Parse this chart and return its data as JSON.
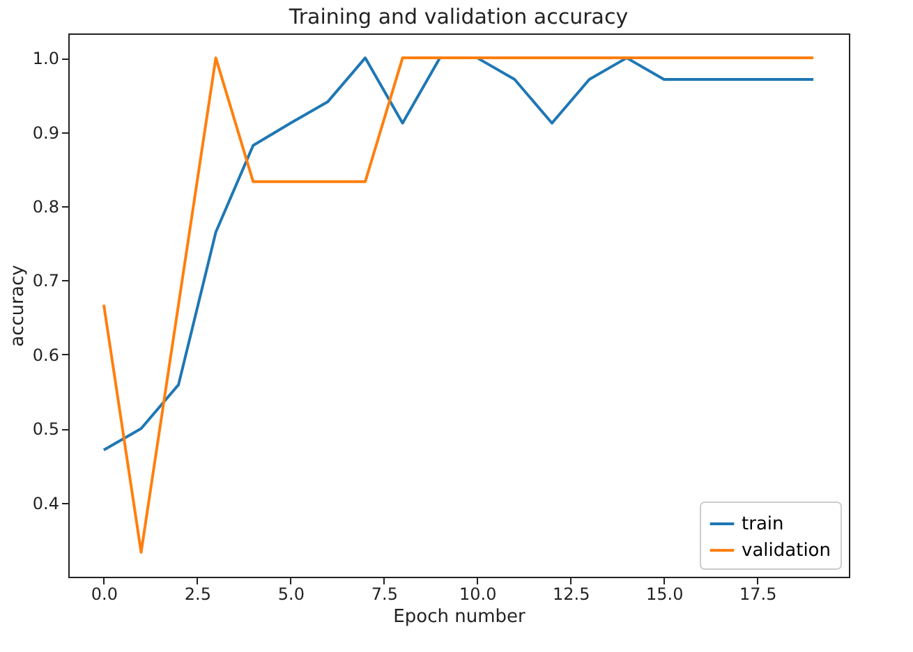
{
  "chart_data": {
    "type": "line",
    "title": "Training and validation accuracy",
    "xlabel": "Epoch number",
    "ylabel": "accuracy",
    "x": [
      0,
      1,
      2,
      3,
      4,
      5,
      6,
      7,
      8,
      9,
      10,
      11,
      12,
      13,
      14,
      15,
      16,
      17,
      18,
      19
    ],
    "series": [
      {
        "name": "train",
        "color": "#1f77b4",
        "values": [
          0.471,
          0.5,
          0.559,
          0.765,
          0.882,
          0.912,
          0.941,
          1.0,
          0.912,
          1.0,
          1.0,
          0.971,
          0.912,
          0.971,
          1.0,
          0.971,
          0.971,
          0.971,
          0.971,
          0.971
        ]
      },
      {
        "name": "validation",
        "color": "#ff7f0e",
        "values": [
          0.667,
          0.333,
          0.667,
          1.0,
          0.833,
          0.833,
          0.833,
          0.833,
          1.0,
          1.0,
          1.0,
          1.0,
          1.0,
          1.0,
          1.0,
          1.0,
          1.0,
          1.0,
          1.0,
          1.0
        ]
      }
    ],
    "xlim": [
      -0.95,
      19.95
    ],
    "xticks": [
      {
        "value": 0,
        "label": "0.0"
      },
      {
        "value": 2.5,
        "label": "2.5"
      },
      {
        "value": 5,
        "label": "5.0"
      },
      {
        "value": 7.5,
        "label": "7.5"
      },
      {
        "value": 10,
        "label": "10.0"
      },
      {
        "value": 12.5,
        "label": "12.5"
      },
      {
        "value": 15,
        "label": "15.0"
      },
      {
        "value": 17.5,
        "label": "17.5"
      }
    ],
    "ylim": [
      0.3,
      1.033
    ],
    "yticks": [
      0.4,
      0.5,
      0.6,
      0.7,
      0.8,
      0.9,
      {
        "value": 1.0,
        "label": "1.0"
      }
    ],
    "legend": "bottom right",
    "grid": false,
    "marker": "none",
    "line_style": "solid"
  }
}
